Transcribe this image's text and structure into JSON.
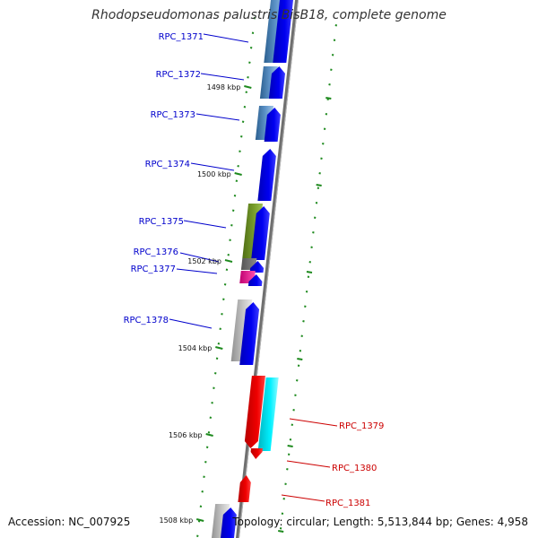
{
  "title": "Rhodopseudomonas palustris BisB18, complete genome",
  "accession": "Accession: NC_007925",
  "topology": "Topology: circular; Length: 5,513,844 bp; Genes: 4,958",
  "colors": {
    "backbone": "#777777",
    "forward_cds": "#0000ee",
    "label_forward": "#0000cc",
    "label_reverse": "#cc0000",
    "tick": "#228b22"
  },
  "scale_labels": [
    "1498 kbp",
    "1500 kbp",
    "1502 kbp",
    "1504 kbp",
    "1506 kbp",
    "1508 kbp"
  ],
  "genes": [
    {
      "label": "RPC_1371",
      "strand": "forward",
      "color": "#4a7fb5"
    },
    {
      "label": "RPC_1372",
      "strand": "forward",
      "color": "#4a7fb5"
    },
    {
      "label": "RPC_1373",
      "strand": "forward",
      "color": "#4a7fb5"
    },
    {
      "label": "RPC_1374",
      "strand": "forward",
      "color": "#0000ee"
    },
    {
      "label": "RPC_1375",
      "strand": "forward",
      "color": "#6b8e23"
    },
    {
      "label": "RPC_1376",
      "strand": "forward",
      "color": "#707070"
    },
    {
      "label": "RPC_1377",
      "strand": "forward",
      "color": "#e0178a"
    },
    {
      "label": "RPC_1378",
      "strand": "forward",
      "color": "#b0b0b0"
    },
    {
      "label": "RPC_1379",
      "strand": "reverse",
      "color": "#00e5ee"
    },
    {
      "label": "RPC_1380",
      "strand": "reverse",
      "color": "#ee0000"
    },
    {
      "label": "RPC_1381",
      "strand": "reverse",
      "color": "#ee0000"
    }
  ]
}
